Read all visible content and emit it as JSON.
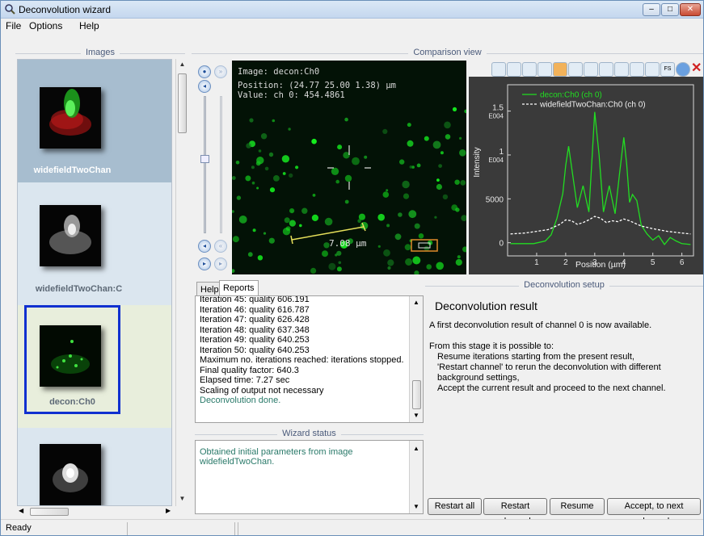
{
  "window": {
    "title": "Deconvolution wizard",
    "controls": [
      "–",
      "□",
      "✕"
    ]
  },
  "menu": [
    "File",
    "Options",
    "Help"
  ],
  "sections": {
    "images": "Images",
    "comparison": "Comparison view",
    "wizard_status": "Wizard status",
    "setup": "Deconvolution setup"
  },
  "images": [
    {
      "label": "widefieldTwoChan",
      "selected": true
    },
    {
      "label": "widefieldTwoChan:C",
      "selected": false
    },
    {
      "label": "decon:Ch0",
      "selected": false,
      "focused": true
    },
    {
      "label": "",
      "selected": false
    }
  ],
  "viewer": {
    "image_line": "Image: decon:Ch0",
    "position_line": "Position: (24.77 25.00 1.38) µm",
    "value_line": "Value: ch 0: 454.4861",
    "scalebar_label": "7.08 µm"
  },
  "chart_data": {
    "type": "line",
    "xlabel": "Position (µm)",
    "ylabel": "Intensity",
    "x_ticks": [
      "1",
      "2",
      "3",
      "4",
      "5",
      "6"
    ],
    "y_ticks": [
      "0",
      "5000",
      "1\nE004",
      "1.5\nE004"
    ],
    "xlim": [
      0.0,
      6.4
    ],
    "ylim": [
      -1500,
      18000
    ],
    "grid": false,
    "legend_position": "top-right",
    "series": [
      {
        "name": "decon:Ch0 (ch 0)",
        "color": "#22dd22",
        "style": "solid",
        "x": [
          0.1,
          0.9,
          1.3,
          1.5,
          1.7,
          1.9,
          2.0,
          2.1,
          2.25,
          2.4,
          2.6,
          2.8,
          3.0,
          3.15,
          3.3,
          3.5,
          3.7,
          3.85,
          4.0,
          4.1,
          4.2,
          4.3,
          4.45,
          4.6,
          4.8,
          5.0,
          5.2,
          5.4,
          5.6,
          5.8,
          6.0,
          6.3
        ],
        "y": [
          -100,
          -100,
          200,
          900,
          2800,
          5600,
          8800,
          11000,
          7500,
          4000,
          6500,
          3500,
          14900,
          10000,
          3500,
          6500,
          3300,
          7800,
          12000,
          9000,
          4600,
          5500,
          4800,
          2000,
          1000,
          300,
          800,
          -200,
          600,
          200,
          -100,
          -200
        ]
      },
      {
        "name": "widefieldTwoChan:Ch0 (ch 0)",
        "color": "#ffffff",
        "style": "dashed",
        "x": [
          0.1,
          0.6,
          1.0,
          1.4,
          1.8,
          2.0,
          2.2,
          2.4,
          2.6,
          2.8,
          3.0,
          3.2,
          3.4,
          3.6,
          3.8,
          4.0,
          4.2,
          4.4,
          4.6,
          5.0,
          5.5,
          6.0,
          6.3
        ],
        "y": [
          1000,
          1100,
          1300,
          1500,
          2100,
          2600,
          2500,
          2100,
          2300,
          2600,
          3000,
          2800,
          2300,
          2500,
          2400,
          2700,
          2500,
          2200,
          1900,
          1600,
          1300,
          1100,
          1000
        ]
      }
    ]
  },
  "tabs": [
    {
      "label": "Help",
      "active": false
    },
    {
      "label": "Reports",
      "active": true
    }
  ],
  "report_lines": [
    {
      "text": "Iteration 45: quality 606.191",
      "accent": false
    },
    {
      "text": "Iteration 46: quality 616.787",
      "accent": false
    },
    {
      "text": "Iteration 47: quality 626.428",
      "accent": false
    },
    {
      "text": "Iteration 48: quality 637.348",
      "accent": false
    },
    {
      "text": "Iteration 49: quality 640.253",
      "accent": false
    },
    {
      "text": "Iteration 50: quality 640.253",
      "accent": false
    },
    {
      "text": "Maximum no. iterations reached: iterations stopped.",
      "accent": false
    },
    {
      "text": "Final quality factor: 640.3",
      "accent": false
    },
    {
      "text": "Elapsed time: 7.27 sec",
      "accent": false
    },
    {
      "text": "Scaling of output not necessary",
      "accent": false
    },
    {
      "text": "Deconvolution done.",
      "accent": true
    }
  ],
  "wizard_status_text": [
    "Obtained initial parameters from image",
    "widefieldTwoChan."
  ],
  "setup": {
    "heading": "Deconvolution result",
    "line1": "A first deconvolution result of channel 0 is now available.",
    "line2": "From this stage it is possible to:",
    "bullets": [
      "Resume iterations starting from the present result,",
      "'Restart channel' to rerun the deconvolution with different",
      "background settings,",
      "Accept the current result and proceed to the next channel."
    ]
  },
  "buttons": {
    "restart_all": "Restart all",
    "restart_channel": "Restart channel",
    "resume": "Resume",
    "accept": "Accept, to next channel"
  },
  "statusbar": {
    "text": "Ready"
  },
  "colors": {
    "accent_text": "#2a7a6a",
    "selection_border": "#1030d0",
    "selected_tile": "#a7bdcf",
    "focused_tile": "#e8eedc"
  }
}
